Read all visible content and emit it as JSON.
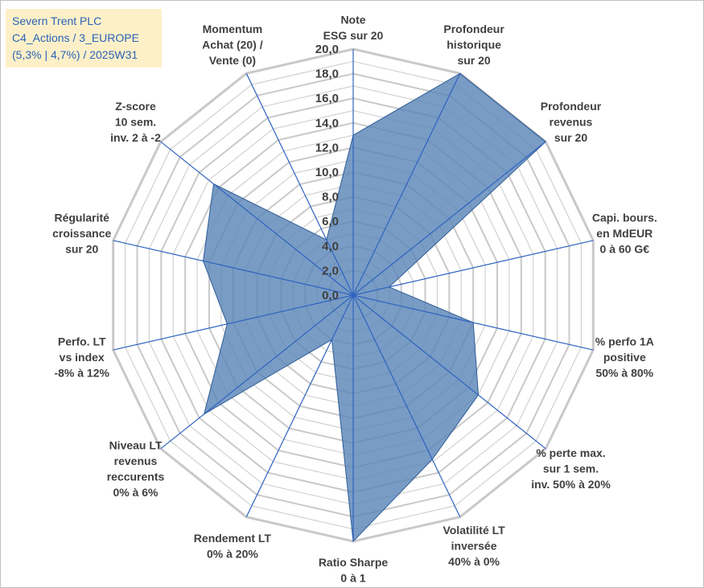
{
  "header": {
    "line1": "Severn Trent PLC",
    "line2": "C4_Actions / 3_EUROPE",
    "line3": "(5,3% | 4,7%) / 2025W31"
  },
  "chart_data": {
    "type": "radar",
    "title": "Severn Trent PLC",
    "rmax": 20,
    "ticks": [
      "0,0",
      "2,0",
      "4,0",
      "6,0",
      "8,0",
      "10,0",
      "12,0",
      "14,0",
      "16,0",
      "18,0",
      "20,0"
    ],
    "tick_values": [
      0,
      2,
      4,
      6,
      8,
      10,
      12,
      14,
      16,
      18,
      20
    ],
    "minor_rings": 20,
    "categories": [
      [
        "Note",
        "ESG sur 20"
      ],
      [
        "Profondeur",
        "historique",
        "sur 20"
      ],
      [
        "Profondeur",
        "revenus",
        "sur 20"
      ],
      [
        "Capi. bours.",
        "en MdEUR",
        "0 à 60 G€"
      ],
      [
        "% perfo 1A",
        "positive",
        "50% à 80%"
      ],
      [
        "% perte max.",
        "sur 1 sem.",
        "inv. 50% à 20%"
      ],
      [
        "Volatilité LT",
        "inversée",
        "40% à 0%"
      ],
      [
        "Ratio Sharpe",
        "0 à 1"
      ],
      [
        "Rendement LT",
        "0% à 20%"
      ],
      [
        "Niveau LT",
        "revenus",
        "reccurents",
        "0% à 6%"
      ],
      [
        "Perfo. LT",
        "vs index",
        "-8% à 12%"
      ],
      [
        "Régularité",
        "croissance",
        "sur 20"
      ],
      [
        "Z-score",
        "10 sem.",
        "inv. 2 à -2"
      ],
      [
        "Momentum",
        "Achat (20) /",
        "Vente (0)"
      ]
    ],
    "values": [
      13.0,
      20.0,
      20.0,
      3.0,
      10.0,
      13.0,
      14.8,
      20.0,
      4.0,
      15.5,
      10.5,
      12.5,
      14.5,
      5.0
    ],
    "colors": {
      "fill": "#5b86b8",
      "stroke": "#2e5c96",
      "grid": "#c9c9c9",
      "spoke": "#2e63c0"
    }
  }
}
